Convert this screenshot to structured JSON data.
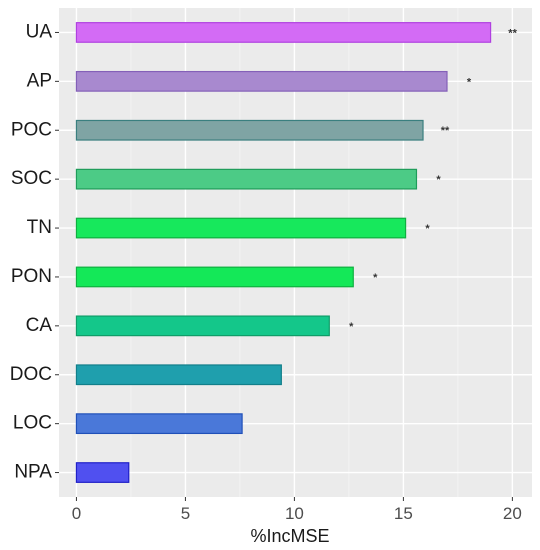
{
  "chart_data": {
    "type": "bar",
    "orientation": "horizontal",
    "categories": [
      "UA",
      "AP",
      "POC",
      "SOC",
      "TN",
      "PON",
      "CA",
      "DOC",
      "LOC",
      "NPA"
    ],
    "values": [
      19.0,
      17.0,
      15.9,
      15.6,
      15.1,
      12.7,
      11.6,
      9.4,
      7.6,
      2.4
    ],
    "significance": [
      "**",
      "*",
      "**",
      "*",
      "*",
      "*",
      "*",
      "",
      "",
      ""
    ],
    "colors": [
      "#d36bf5",
      "#a889cf",
      "#7fa4a4",
      "#4ccb86",
      "#17e85c",
      "#14e858",
      "#14c78a",
      "#1f9fad",
      "#4a78d9",
      "#5050f0"
    ],
    "borders": [
      "#b040e0",
      "#8460b8",
      "#3a7f7f",
      "#1f9c5a",
      "#0fb040",
      "#0fb040",
      "#0f9c68",
      "#127f8a",
      "#2050b8",
      "#2020c8"
    ],
    "xlabel": "%IncMSE",
    "ylabel": "",
    "xlim": [
      -0.8,
      20.9
    ],
    "xticks": [
      0,
      5,
      10,
      15,
      20
    ],
    "grid": true,
    "background": "#ebebeb"
  }
}
